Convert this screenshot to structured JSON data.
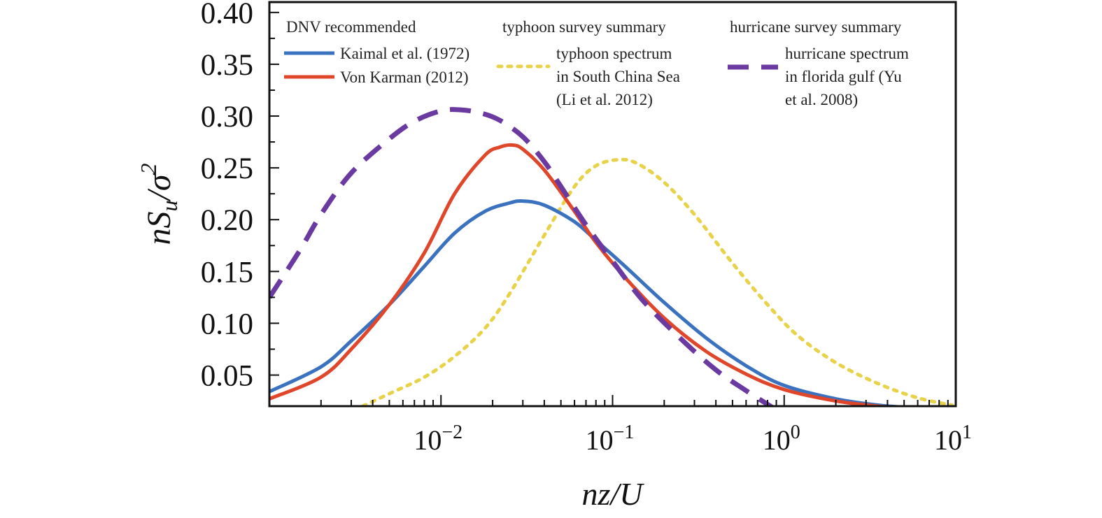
{
  "chart_data": {
    "type": "line",
    "xscale": "log",
    "xlim": [
      0.001,
      10
    ],
    "ylim": [
      0.02,
      0.41
    ],
    "xlabel": "nz/U",
    "ylabel": "nSu/σ2",
    "x_ticks": [
      {
        "value": 0.01,
        "base": "10",
        "exp": "−2"
      },
      {
        "value": 0.1,
        "base": "10",
        "exp": "−1"
      },
      {
        "value": 1,
        "base": "10",
        "exp": "0"
      },
      {
        "value": 10,
        "base": "10",
        "exp": "1"
      }
    ],
    "y_ticks": [
      "0.05",
      "0.10",
      "0.15",
      "0.20",
      "0.25",
      "0.30",
      "0.35",
      "0.40"
    ],
    "grid": false,
    "legend": {
      "groups": [
        {
          "heading": "DNV recommended",
          "entries": [
            "Kaimal et al. (1972)",
            "Von Karman (2012)"
          ]
        },
        {
          "heading": "typhoon survey summary",
          "entries": [
            "typhoon spectrum\nin South China Sea\n(Li et al. 2012)"
          ]
        },
        {
          "heading": "hurricane survey summary",
          "entries": [
            "hurricane spectrum\nin florida gulf (Yu\net al. 2008)"
          ]
        }
      ]
    },
    "series": [
      {
        "name": "Kaimal et al. (1972)",
        "color": "#3a72c0",
        "style": "solid",
        "x": [
          0.001,
          0.002,
          0.003,
          0.005,
          0.008,
          0.012,
          0.018,
          0.025,
          0.03,
          0.04,
          0.06,
          0.08,
          0.12,
          0.2,
          0.35,
          0.6,
          1.0,
          2.0,
          3.5,
          5.0
        ],
        "y": [
          0.034,
          0.058,
          0.083,
          0.118,
          0.155,
          0.187,
          0.208,
          0.216,
          0.218,
          0.214,
          0.198,
          0.18,
          0.154,
          0.12,
          0.086,
          0.059,
          0.04,
          0.027,
          0.021,
          0.019
        ]
      },
      {
        "name": "Von Karman (2012)",
        "color": "#e0462a",
        "style": "solid",
        "x": [
          0.001,
          0.002,
          0.003,
          0.005,
          0.008,
          0.012,
          0.018,
          0.022,
          0.026,
          0.03,
          0.04,
          0.06,
          0.08,
          0.12,
          0.2,
          0.35,
          0.6,
          1.0,
          2.0,
          3.5,
          4.5
        ],
        "y": [
          0.027,
          0.048,
          0.075,
          0.118,
          0.168,
          0.225,
          0.262,
          0.27,
          0.272,
          0.268,
          0.248,
          0.208,
          0.178,
          0.143,
          0.105,
          0.073,
          0.051,
          0.036,
          0.025,
          0.02,
          0.019
        ]
      },
      {
        "name": "typhoon spectrum in South China Sea (Li et al. 2012)",
        "color": "#e8d24a",
        "style": "dotted",
        "x": [
          0.0035,
          0.005,
          0.008,
          0.012,
          0.018,
          0.025,
          0.04,
          0.06,
          0.08,
          0.11,
          0.14,
          0.2,
          0.3,
          0.5,
          0.8,
          1.2,
          2.0,
          3.5,
          6.0,
          9.5
        ],
        "y": [
          0.02,
          0.032,
          0.048,
          0.068,
          0.095,
          0.128,
          0.185,
          0.232,
          0.252,
          0.258,
          0.254,
          0.236,
          0.205,
          0.158,
          0.118,
          0.088,
          0.062,
          0.042,
          0.028,
          0.021
        ]
      },
      {
        "name": "hurricane spectrum in florida gulf (Yu et al. 2008)",
        "color": "#6a3aa0",
        "style": "dashed",
        "x": [
          0.001,
          0.0015,
          0.002,
          0.003,
          0.005,
          0.007,
          0.01,
          0.013,
          0.017,
          0.022,
          0.03,
          0.04,
          0.05,
          0.07,
          0.1,
          0.15,
          0.25,
          0.4,
          0.6,
          0.85
        ],
        "y": [
          0.125,
          0.17,
          0.205,
          0.245,
          0.278,
          0.295,
          0.305,
          0.306,
          0.303,
          0.296,
          0.28,
          0.256,
          0.232,
          0.195,
          0.16,
          0.122,
          0.085,
          0.055,
          0.035,
          0.019
        ]
      }
    ]
  }
}
